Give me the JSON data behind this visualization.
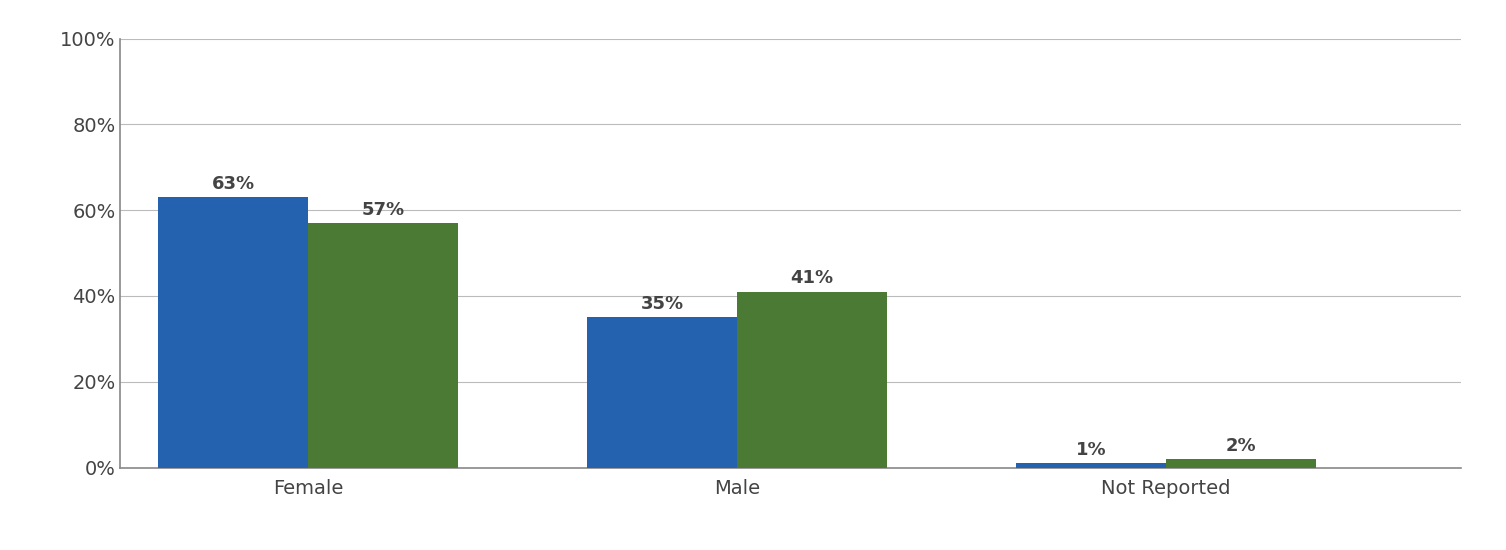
{
  "categories": [
    "Female",
    "Male",
    "Not Reported"
  ],
  "jd_values": [
    63,
    35,
    1
  ],
  "llm_values": [
    57,
    41,
    2
  ],
  "jd_color": "#2461AE",
  "llm_color": "#4B7A35",
  "bar_width": 0.28,
  "group_positions": [
    0.35,
    1.15,
    1.95
  ],
  "ylim": [
    0,
    100
  ],
  "yticks": [
    0,
    20,
    40,
    60,
    80,
    100
  ],
  "ytick_labels": [
    "0%",
    "20%",
    "40%",
    "60%",
    "80%",
    "100%"
  ],
  "tick_fontsize": 14,
  "annotation_fontsize": 13,
  "xlabel_fontsize": 14,
  "background_color": "#ffffff",
  "spine_color": "#888888",
  "grid_color": "#bbbbbb",
  "text_color": "#444444"
}
